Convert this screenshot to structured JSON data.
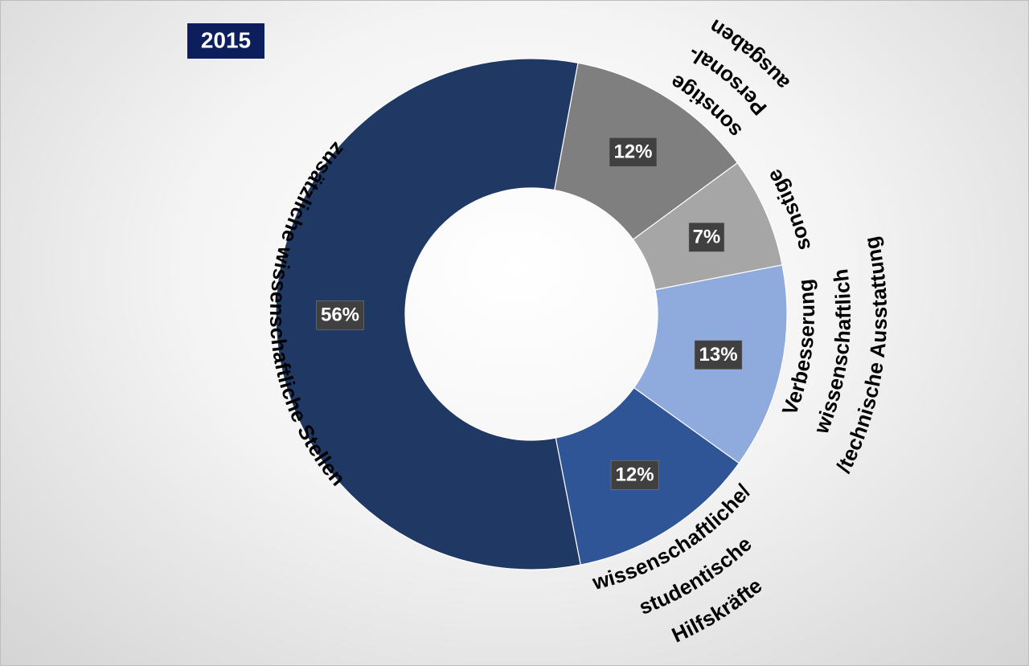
{
  "chart_data": {
    "type": "donut",
    "title": "2015",
    "categories": [
      [
        "sonstige",
        "Personal-",
        "ausgaben"
      ],
      [
        "sonstige"
      ],
      [
        "Verbesserung",
        "wissenschaftlich",
        "/technische Ausstattung"
      ],
      [
        "wissenschaftliche/",
        "studentische",
        "Hilfskräfte"
      ],
      [
        "zusätzliche wissenschaftliche Stellen"
      ]
    ],
    "values": [
      12,
      7,
      13,
      12,
      56
    ],
    "value_labels": [
      "12%",
      "7%",
      "13%",
      "12%",
      "56%"
    ],
    "colors": [
      "#7f7f7f",
      "#a6a6a6",
      "#8faadc",
      "#2f5597",
      "#203864"
    ]
  }
}
